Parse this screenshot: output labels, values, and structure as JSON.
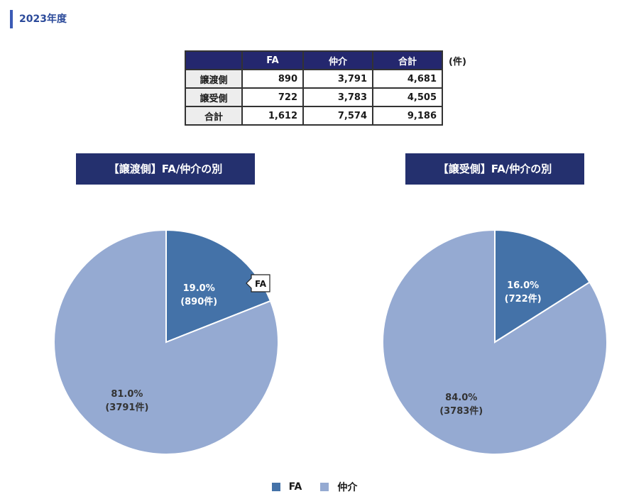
{
  "section_title": "2023年度",
  "table": {
    "columns": [
      "FA",
      "仲介",
      "合計"
    ],
    "rows": [
      {
        "label": "譲渡側",
        "values": [
          "890",
          "3,791",
          "4,681"
        ]
      },
      {
        "label": "譲受側",
        "values": [
          "722",
          "3,783",
          "4,505"
        ]
      },
      {
        "label": "合計",
        "values": [
          "1,612",
          "7,574",
          "9,186"
        ]
      }
    ],
    "unit": "(件)"
  },
  "chart_data": [
    {
      "type": "pie",
      "title": "【譲渡側】FA/仲介の別",
      "categories": [
        "FA",
        "仲介"
      ],
      "values": [
        890,
        3791
      ],
      "labels": [
        {
          "pct": "19.0%",
          "count": "(890件)"
        },
        {
          "pct": "81.0%",
          "count": "(3791件)"
        }
      ],
      "callout": "FA",
      "colors": [
        "#4472a8",
        "#95aad2"
      ],
      "legend": "bottom"
    },
    {
      "type": "pie",
      "title": "【譲受側】FA/仲介の別",
      "categories": [
        "FA",
        "仲介"
      ],
      "values": [
        722,
        3783
      ],
      "labels": [
        {
          "pct": "16.0%",
          "count": "(722件)"
        },
        {
          "pct": "84.0%",
          "count": "(3783件)"
        }
      ],
      "colors": [
        "#4472a8",
        "#95aad2"
      ],
      "legend": "bottom"
    }
  ],
  "legend": [
    {
      "label": "FA",
      "color": "#4472a8"
    },
    {
      "label": "仲介",
      "color": "#95aad2"
    }
  ]
}
